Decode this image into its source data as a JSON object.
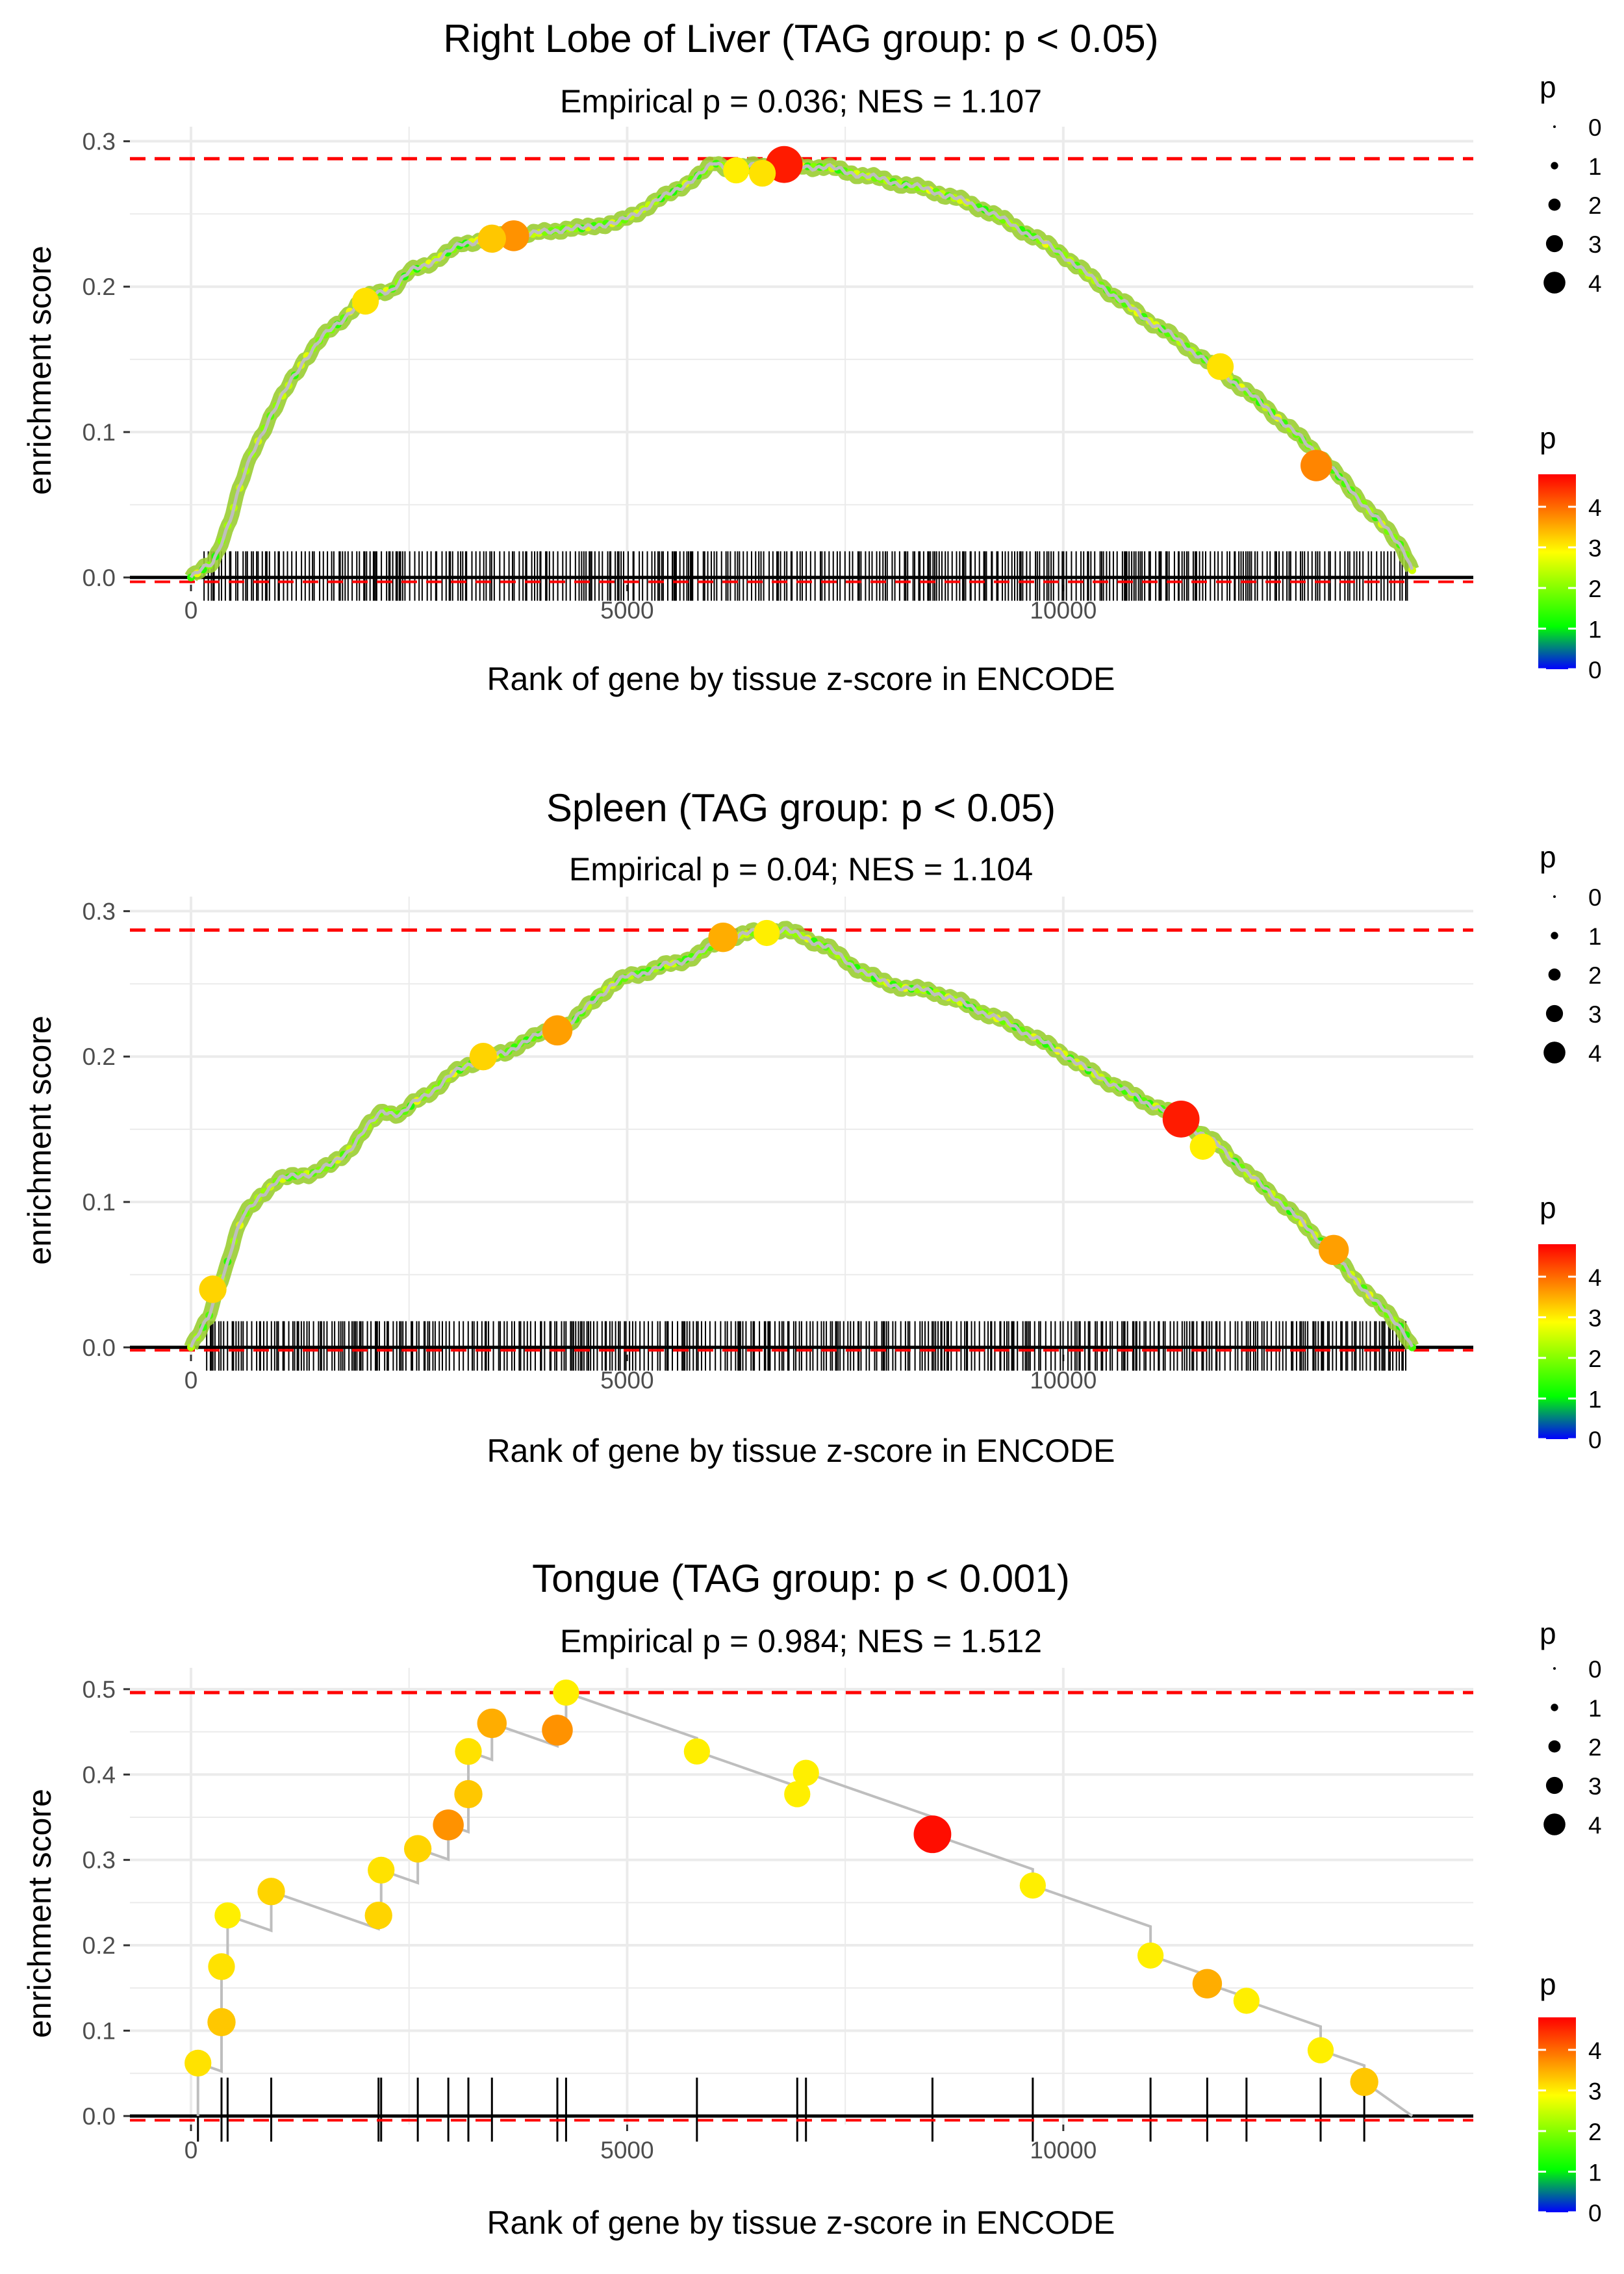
{
  "colors": {
    "reference_line": "#ff0000",
    "gene_tick": "#000000",
    "gridline": "#ebebeb",
    "curve": "#bebebe",
    "scale_low": "#0000ff",
    "scale_mid": "#00ff00",
    "scale_high": "#ff0000"
  },
  "chart_data": [
    {
      "type": "line",
      "title": "Right Lobe of Liver (TAG group: p < 0.05)",
      "subtitle": "Empirical p = 0.036; NES = 1.107",
      "xlabel": "Rank of gene by tissue z-score in ENCODE",
      "ylabel": "enrichment score",
      "xlim": [
        -700,
        14700
      ],
      "ylim": [
        -0.005,
        0.31
      ],
      "xticks": [
        0,
        5000,
        10000
      ],
      "xtick_labels": [
        "0",
        "5000",
        "10000"
      ],
      "yticks": [
        0.0,
        0.1,
        0.2,
        0.3
      ],
      "ytick_labels": [
        "0.0",
        "0.1",
        "0.2",
        "0.3"
      ],
      "max_es": 0.288,
      "min_es": -0.003,
      "dense": true,
      "curve": {
        "x": [
          0,
          250,
          350,
          450,
          550,
          700,
          900,
          1100,
          1300,
          1500,
          1700,
          1900,
          2100,
          2300,
          2500,
          2700,
          2900,
          3100,
          3300,
          3500,
          3700,
          3900,
          4100,
          4300,
          4500,
          4700,
          4900,
          5100,
          5300,
          5500,
          5700,
          5900,
          6000,
          6200,
          6500,
          6800,
          7000,
          7300,
          7600,
          7900,
          8200,
          8500,
          8800,
          9100,
          9400,
          9700,
          10000,
          10300,
          10600,
          10900,
          11200,
          11500,
          11800,
          12100,
          12400,
          12700,
          13000,
          13300,
          13600,
          13900,
          14000
        ],
        "y": [
          0.0,
          0.01,
          0.025,
          0.04,
          0.06,
          0.085,
          0.11,
          0.13,
          0.15,
          0.165,
          0.175,
          0.188,
          0.195,
          0.198,
          0.21,
          0.215,
          0.222,
          0.229,
          0.232,
          0.234,
          0.236,
          0.236,
          0.238,
          0.24,
          0.24,
          0.243,
          0.244,
          0.25,
          0.258,
          0.264,
          0.272,
          0.28,
          0.285,
          0.281,
          0.283,
          0.284,
          0.283,
          0.282,
          0.278,
          0.274,
          0.27,
          0.266,
          0.26,
          0.253,
          0.243,
          0.233,
          0.222,
          0.207,
          0.193,
          0.18,
          0.168,
          0.155,
          0.142,
          0.128,
          0.113,
          0.097,
          0.08,
          0.06,
          0.04,
          0.02,
          0.005
        ]
      },
      "highlights": [
        {
          "x": 6800,
          "y": 0.284,
          "p": 4.6
        },
        {
          "x": 6250,
          "y": 0.28,
          "p": 3.0
        },
        {
          "x": 6550,
          "y": 0.278,
          "p": 3.1
        },
        {
          "x": 3700,
          "y": 0.235,
          "p": 3.7
        },
        {
          "x": 3450,
          "y": 0.233,
          "p": 3.3
        },
        {
          "x": 12900,
          "y": 0.077,
          "p": 3.8
        },
        {
          "x": 2000,
          "y": 0.19,
          "p": 3.1
        },
        {
          "x": 11800,
          "y": 0.145,
          "p": 3.1
        }
      ],
      "p_size_legend": [
        "0",
        "1",
        "2",
        "3",
        "4"
      ],
      "p_color_legend": [
        "4",
        "3",
        "2",
        "1",
        "0"
      ]
    },
    {
      "type": "line",
      "title": "Spleen (TAG group: p < 0.05)",
      "subtitle": "Empirical p = 0.04; NES = 1.104",
      "xlabel": "Rank of gene by tissue z-score in ENCODE",
      "ylabel": "enrichment score",
      "xlim": [
        -700,
        14700
      ],
      "ylim": [
        -0.005,
        0.31
      ],
      "xticks": [
        0,
        5000,
        10000
      ],
      "xtick_labels": [
        "0",
        "5000",
        "10000"
      ],
      "yticks": [
        0.0,
        0.1,
        0.2,
        0.3
      ],
      "ytick_labels": [
        "0.0",
        "0.1",
        "0.2",
        "0.3"
      ],
      "max_es": 0.287,
      "min_es": -0.002,
      "dense": true,
      "curve": {
        "x": [
          0,
          200,
          300,
          400,
          500,
          600,
          800,
          1000,
          1200,
          1400,
          1600,
          1800,
          2000,
          2200,
          2400,
          2600,
          2800,
          3000,
          3200,
          3400,
          3600,
          3800,
          4000,
          4200,
          4400,
          4600,
          4800,
          5000,
          5200,
          5400,
          5600,
          5800,
          6000,
          6200,
          6500,
          6800,
          7000,
          7300,
          7600,
          7900,
          8200,
          8500,
          8800,
          9100,
          9400,
          9700,
          10000,
          10300,
          10600,
          10900,
          11200,
          11500,
          11800,
          12100,
          12400,
          12700,
          13000,
          13300,
          13600,
          13900,
          14000
        ],
        "y": [
          0.0,
          0.02,
          0.04,
          0.055,
          0.075,
          0.09,
          0.105,
          0.115,
          0.118,
          0.12,
          0.125,
          0.135,
          0.15,
          0.163,
          0.16,
          0.17,
          0.178,
          0.188,
          0.195,
          0.2,
          0.202,
          0.21,
          0.215,
          0.218,
          0.225,
          0.238,
          0.248,
          0.255,
          0.258,
          0.262,
          0.265,
          0.27,
          0.277,
          0.282,
          0.286,
          0.287,
          0.283,
          0.275,
          0.262,
          0.252,
          0.247,
          0.245,
          0.238,
          0.23,
          0.222,
          0.212,
          0.202,
          0.19,
          0.18,
          0.17,
          0.162,
          0.15,
          0.138,
          0.12,
          0.105,
          0.088,
          0.07,
          0.05,
          0.03,
          0.012,
          0.0
        ]
      },
      "highlights": [
        {
          "x": 11350,
          "y": 0.157,
          "p": 4.6
        },
        {
          "x": 4200,
          "y": 0.218,
          "p": 3.6
        },
        {
          "x": 6100,
          "y": 0.282,
          "p": 3.5
        },
        {
          "x": 3350,
          "y": 0.2,
          "p": 3.2
        },
        {
          "x": 13100,
          "y": 0.067,
          "p": 3.6
        },
        {
          "x": 250,
          "y": 0.04,
          "p": 3.2
        },
        {
          "x": 6600,
          "y": 0.285,
          "p": 3.0
        },
        {
          "x": 11600,
          "y": 0.138,
          "p": 3.0
        }
      ],
      "p_size_legend": [
        "0",
        "1",
        "2",
        "3",
        "4"
      ],
      "p_color_legend": [
        "4",
        "3",
        "2",
        "1",
        "0"
      ]
    },
    {
      "type": "line",
      "title": "Tongue (TAG group: p < 0.001)",
      "subtitle": "Empirical p = 0.984; NES = 1.512",
      "xlabel": "Rank of gene by tissue z-score in ENCODE",
      "ylabel": "enrichment score",
      "xlim": [
        -700,
        14700
      ],
      "ylim": [
        -0.01,
        0.525
      ],
      "xticks": [
        0,
        5000,
        10000
      ],
      "xtick_labels": [
        "0",
        "5000",
        "10000"
      ],
      "yticks": [
        0.0,
        0.1,
        0.2,
        0.3,
        0.4,
        0.5
      ],
      "ytick_labels": [
        "0.0",
        "0.1",
        "0.2",
        "0.3",
        "0.4",
        "0.5"
      ],
      "max_es": 0.496,
      "min_es": -0.005,
      "dense": false,
      "points": [
        {
          "x": 80,
          "y": 0.062,
          "p": 3.1
        },
        {
          "x": 350,
          "y": 0.11,
          "p": 3.3
        },
        {
          "x": 350,
          "y": 0.175,
          "p": 3.1
        },
        {
          "x": 420,
          "y": 0.235,
          "p": 3.0
        },
        {
          "x": 920,
          "y": 0.263,
          "p": 3.2
        },
        {
          "x": 2150,
          "y": 0.235,
          "p": 3.2
        },
        {
          "x": 2180,
          "y": 0.288,
          "p": 3.1
        },
        {
          "x": 2600,
          "y": 0.313,
          "p": 3.2
        },
        {
          "x": 2950,
          "y": 0.341,
          "p": 3.7
        },
        {
          "x": 3180,
          "y": 0.377,
          "p": 3.3
        },
        {
          "x": 3180,
          "y": 0.427,
          "p": 3.1
        },
        {
          "x": 3450,
          "y": 0.46,
          "p": 3.5
        },
        {
          "x": 4200,
          "y": 0.452,
          "p": 3.7
        },
        {
          "x": 4300,
          "y": 0.496,
          "p": 3.0
        },
        {
          "x": 5800,
          "y": 0.427,
          "p": 3.0
        },
        {
          "x": 6950,
          "y": 0.377,
          "p": 3.0
        },
        {
          "x": 7050,
          "y": 0.402,
          "p": 3.0
        },
        {
          "x": 8500,
          "y": 0.33,
          "p": 4.7
        },
        {
          "x": 9650,
          "y": 0.27,
          "p": 3.0
        },
        {
          "x": 11000,
          "y": 0.188,
          "p": 3.0
        },
        {
          "x": 11650,
          "y": 0.155,
          "p": 3.5
        },
        {
          "x": 12100,
          "y": 0.135,
          "p": 3.0
        },
        {
          "x": 12950,
          "y": 0.077,
          "p": 3.0
        },
        {
          "x": 13450,
          "y": 0.04,
          "p": 3.3
        }
      ],
      "end_x": 14000,
      "p_size_legend": [
        "0",
        "1",
        "2",
        "3",
        "4"
      ],
      "p_color_legend": [
        "4",
        "3",
        "2",
        "1",
        "0"
      ]
    }
  ]
}
